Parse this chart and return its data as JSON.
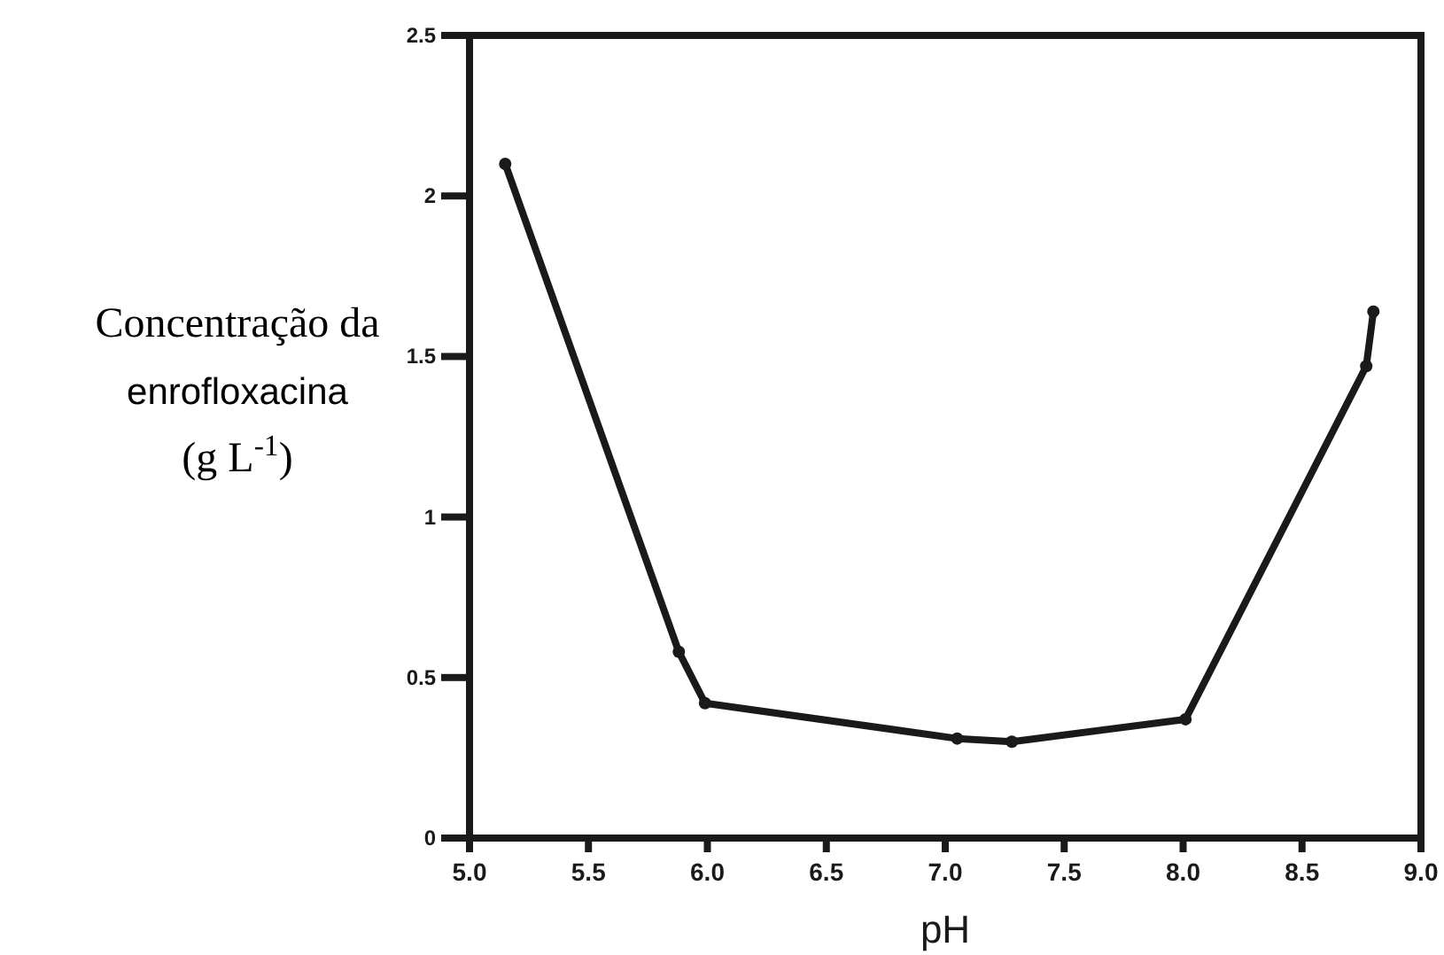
{
  "chart_data": {
    "type": "line",
    "xlabel": "pH",
    "ylabel": "Concentração da enrofloxacina (g L$^{-1}$)",
    "x": [
      5.15,
      5.88,
      5.99,
      7.05,
      7.28,
      8.01,
      8.77,
      8.8
    ],
    "series": [
      {
        "color": "#1a1a1a",
        "values": [
          2.1,
          0.58,
          0.42,
          0.31,
          0.3,
          0.37,
          1.47,
          1.64
        ]
      }
    ],
    "xlim": [
      5,
      9
    ],
    "xticks": [
      {
        "value": 5,
        "label": "5.0"
      },
      {
        "value": 5.5,
        "label": "5.5"
      },
      {
        "value": 6,
        "label": "6.0"
      },
      {
        "value": 6.5,
        "label": "6.5"
      },
      {
        "value": 7,
        "label": "7.0"
      },
      {
        "value": 7.5,
        "label": "7.5"
      },
      {
        "value": 8,
        "label": "8.0"
      },
      {
        "value": 8.5,
        "label": "8.5"
      },
      {
        "value": 9,
        "label": "9.0"
      }
    ],
    "ylim": [
      0,
      2.5
    ],
    "yticks": [
      0,
      0.5,
      1,
      1.5,
      2,
      2.5
    ],
    "grid": false,
    "marker": "circle",
    "line_style": "solid"
  }
}
